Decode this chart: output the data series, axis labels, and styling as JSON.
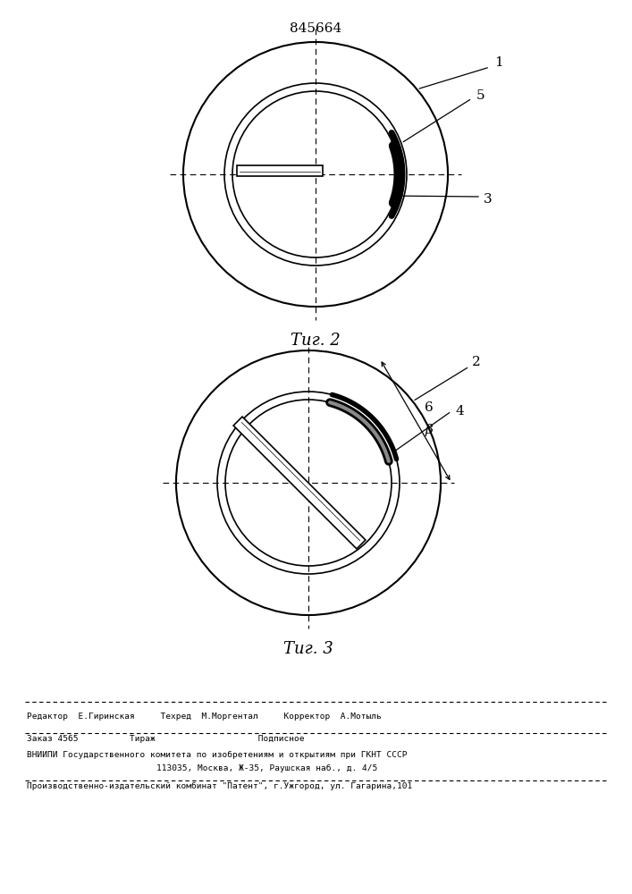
{
  "patent_number": "845664",
  "fig2_caption": "Τиг. 2",
  "fig3_caption": "Τиг. 3",
  "footer_line1": "Редактор  Е.Гиринская     Техред  М.Моргентал     Корректор  А.Мотыль",
  "footer_line2": "Заказ 4565          Тираж                    Подписное",
  "footer_line3": "ВНИИПИ Государственного комитета по изобретениям и открытиям при ГКНТ СССР",
  "footer_line4": "113035, Москва, Ж-35, Раушская наб., д. 4/5",
  "footer_line5": "Производственно-издательский комбинат \"Патент\", г.Ужгород, ул. Гагарина,101",
  "bg_color": "#ffffff",
  "line_color": "#000000"
}
